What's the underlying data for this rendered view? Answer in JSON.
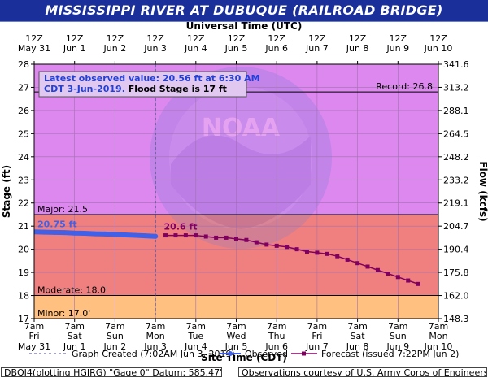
{
  "title": "MISSISSIPPI RIVER AT DUBUQUE (RAILROAD BRIDGE)",
  "top_axis_label": "Universal Time (UTC)",
  "bottom_axis_label": "Site Time (CDT)",
  "left_axis_label": "Stage (ft)",
  "right_axis_label": "Flow (kcfs)",
  "info_box": {
    "line1": "Latest observed value: 20.56 ft at 6:30 AM",
    "line2_blue": "CDT 3-Jun-2019.",
    "line2_black": " Flood Stage is 17 ft"
  },
  "record_label": "Record: 26.8'",
  "major_label": "Major: 21.5'",
  "moderate_label": "Moderate: 18.0'",
  "minor_label": "Minor: 17.0'",
  "obs_start_label": "20.75 ft",
  "fcst_start_label": "20.6 ft",
  "legend": {
    "graph_created": "Graph Created (7:02AM Jun 3, 2019)",
    "observed": "Observed",
    "forecast": "Forecast (issued 7:22PM Jun 2)"
  },
  "footer": {
    "left": "DBQI4(plotting HGIRG) \"Gage 0\" Datum:  585.47'",
    "right": "Observations courtesy of U.S. Army Corps of Engineers"
  },
  "colors": {
    "title_bg": "#1a2f99",
    "above_major": "#dd88ee",
    "major": "#f08080",
    "moderate_band": "#f4a070",
    "minor": "#ffc080",
    "observed": "#4060e8",
    "forecast": "#800060"
  },
  "chart_data": {
    "type": "line",
    "y_left_ticks": [
      "17",
      "18",
      "19",
      "20",
      "21",
      "22",
      "23",
      "24",
      "25",
      "26",
      "27",
      "28"
    ],
    "y_left_range": [
      17,
      28
    ],
    "y_right_ticks": [
      "148.3",
      "162.0",
      "175.8",
      "190.4",
      "204.7",
      "219.1",
      "233.2",
      "248.2",
      "264.5",
      "288.1",
      "313.2",
      "341.6"
    ],
    "top_ticks": [
      {
        "l1": "12Z",
        "l2": "May 31"
      },
      {
        "l1": "12Z",
        "l2": "Jun 1"
      },
      {
        "l1": "12Z",
        "l2": "Jun 2"
      },
      {
        "l1": "12Z",
        "l2": "Jun 3"
      },
      {
        "l1": "12Z",
        "l2": "Jun 4"
      },
      {
        "l1": "12Z",
        "l2": "Jun 5"
      },
      {
        "l1": "12Z",
        "l2": "Jun 6"
      },
      {
        "l1": "12Z",
        "l2": "Jun 7"
      },
      {
        "l1": "12Z",
        "l2": "Jun 8"
      },
      {
        "l1": "12Z",
        "l2": "Jun 9"
      },
      {
        "l1": "12Z",
        "l2": "Jun 10"
      }
    ],
    "bottom_ticks": [
      {
        "l1": "7am",
        "l2": "Fri",
        "l3": "May 31"
      },
      {
        "l1": "7am",
        "l2": "Sat",
        "l3": "Jun 1"
      },
      {
        "l1": "7am",
        "l2": "Sun",
        "l3": "Jun 2"
      },
      {
        "l1": "7am",
        "l2": "Mon",
        "l3": "Jun 3"
      },
      {
        "l1": "7am",
        "l2": "Tue",
        "l3": "Jun 4"
      },
      {
        "l1": "7am",
        "l2": "Wed",
        "l3": "Jun 5"
      },
      {
        "l1": "7am",
        "l2": "Thu",
        "l3": "Jun 6"
      },
      {
        "l1": "7am",
        "l2": "Fri",
        "l3": "Jun 7"
      },
      {
        "l1": "7am",
        "l2": "Sat",
        "l3": "Jun 8"
      },
      {
        "l1": "7am",
        "l2": "Sun",
        "l3": "Jun 9"
      },
      {
        "l1": "7am",
        "l2": "Mon",
        "l3": "Jun 10"
      }
    ],
    "x_range_days": [
      0,
      10
    ],
    "graph_created_day": 3.0,
    "thresholds": {
      "record": 26.8,
      "major": 21.5,
      "moderate": 18.0,
      "minor": 17.0
    },
    "series": [
      {
        "name": "Observed",
        "x": [
          0.0,
          0.25,
          0.5,
          0.75,
          1.0,
          1.25,
          1.5,
          1.75,
          2.0,
          2.25,
          2.5,
          2.75,
          3.0
        ],
        "y": [
          20.75,
          20.74,
          20.73,
          20.72,
          20.7,
          20.69,
          20.67,
          20.66,
          20.64,
          20.62,
          20.6,
          20.58,
          20.56
        ]
      },
      {
        "name": "Forecast",
        "x": [
          3.25,
          3.5,
          3.75,
          4.0,
          4.25,
          4.5,
          4.75,
          5.0,
          5.25,
          5.5,
          5.75,
          6.0,
          6.25,
          6.5,
          6.75,
          7.0,
          7.25,
          7.5,
          7.75,
          8.0,
          8.25,
          8.5,
          8.75,
          9.0,
          9.25,
          9.5
        ],
        "y": [
          20.6,
          20.6,
          20.6,
          20.6,
          20.55,
          20.5,
          20.5,
          20.45,
          20.4,
          20.3,
          20.2,
          20.15,
          20.1,
          20.0,
          19.9,
          19.85,
          19.8,
          19.7,
          19.55,
          19.4,
          19.25,
          19.1,
          18.95,
          18.8,
          18.65,
          18.5
        ]
      }
    ]
  }
}
